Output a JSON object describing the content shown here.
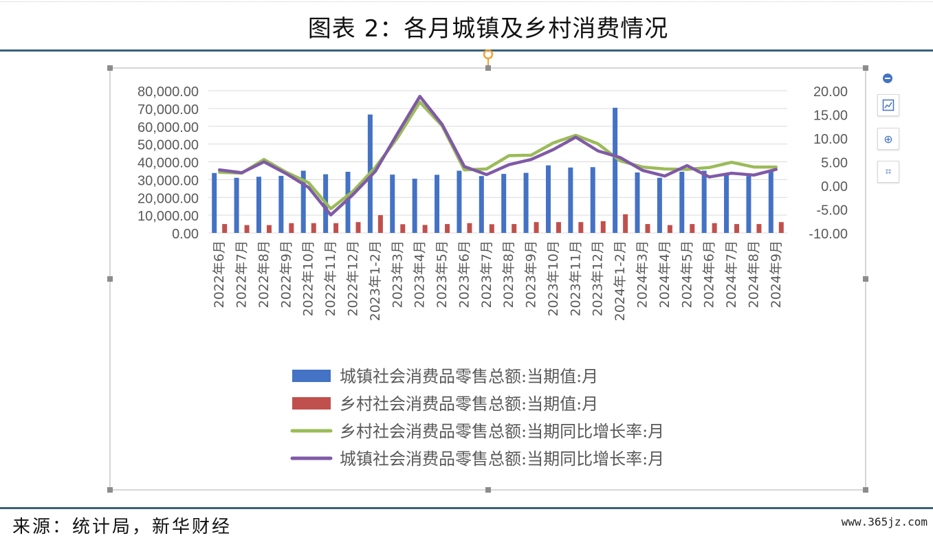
{
  "header": {
    "title": "图表 2：各月城镇及乡村消费情况"
  },
  "footer": {
    "source": "来源：统计局，新华财经",
    "watermark": "www.365jz.com"
  },
  "toolbar": {
    "minus": "−",
    "zoom": "⊕",
    "crop": "⌗"
  },
  "colors": {
    "urban_bar": "#4472c4",
    "rural_bar": "#c0504d",
    "rural_growth": "#9bbb59",
    "urban_growth": "#7f5aa6",
    "rule": "#3b5f78"
  },
  "chart_data": {
    "type": "bar",
    "categories": [
      "2022年6月",
      "2022年7月",
      "2022年8月",
      "2022年9月",
      "2022年10月",
      "2022年11月",
      "2022年12月",
      "2023年1-2月",
      "2023年3月",
      "2023年4月",
      "2023年5月",
      "2023年6月",
      "2023年7月",
      "2023年8月",
      "2023年9月",
      "2023年10月",
      "2023年11月",
      "2023年12月",
      "2024年1-2月",
      "2024年3月",
      "2024年4月",
      "2024年5月",
      "2024年6月",
      "2024年7月",
      "2024年8月",
      "2024年9月"
    ],
    "y_left": {
      "ticks": [
        "80,000.00",
        "70,000.00",
        "60,000.00",
        "50,000.00",
        "40,000.00",
        "30,000.00",
        "20,000.00",
        "10,000.00",
        "0.00"
      ],
      "ylim": [
        0,
        80000
      ]
    },
    "y_right": {
      "ticks": [
        "20.00",
        "15.00",
        "10.00",
        "5.00",
        "0.00",
        "-5.00",
        "-10.00"
      ],
      "ylim": [
        -10,
        20
      ]
    },
    "series": [
      {
        "name": "城镇社会消费品零售总额:当期值:月",
        "axis": "left",
        "kind": "bar",
        "values": [
          33700,
          31000,
          31600,
          32100,
          35000,
          33000,
          34400,
          66600,
          32800,
          30500,
          32700,
          35000,
          32000,
          33200,
          33800,
          38000,
          36800,
          37000,
          70400,
          34000,
          31000,
          34400,
          35000,
          32500,
          32000,
          35000
        ]
      },
      {
        "name": "乡村社会消费品零售总额:当期值:月",
        "axis": "left",
        "kind": "bar",
        "values": [
          5000,
          4400,
          4400,
          5500,
          5500,
          5500,
          6100,
          10000,
          4900,
          4500,
          5000,
          5500,
          4900,
          5000,
          6100,
          6100,
          6100,
          6600,
          10500,
          5000,
          4400,
          5000,
          5500,
          5000,
          5000,
          6100
        ]
      },
      {
        "name": "乡村社会消费品零售总额:当期同比增长率:月",
        "axis": "right",
        "kind": "line",
        "values": [
          2.8,
          2.6,
          5.5,
          2.8,
          0.6,
          -4.9,
          -1.2,
          3.8,
          10.1,
          17.6,
          12.6,
          3.3,
          3.5,
          6.3,
          6.4,
          9.0,
          10.6,
          8.8,
          5.2,
          3.9,
          3.5,
          3.4,
          3.8,
          4.9,
          3.9,
          3.9
        ]
      },
      {
        "name": "城镇社会消费品零售总额:当期同比增长率:月",
        "axis": "right",
        "kind": "line",
        "values": [
          3.3,
          2.7,
          5.0,
          2.5,
          -0.4,
          -6.2,
          -1.9,
          3.0,
          11.0,
          18.8,
          12.9,
          4.0,
          2.3,
          4.4,
          5.5,
          7.6,
          10.2,
          7.3,
          5.9,
          3.2,
          2.0,
          4.2,
          1.8,
          2.6,
          2.2,
          3.4
        ]
      }
    ],
    "legend_position": "bottom",
    "grid": true
  }
}
